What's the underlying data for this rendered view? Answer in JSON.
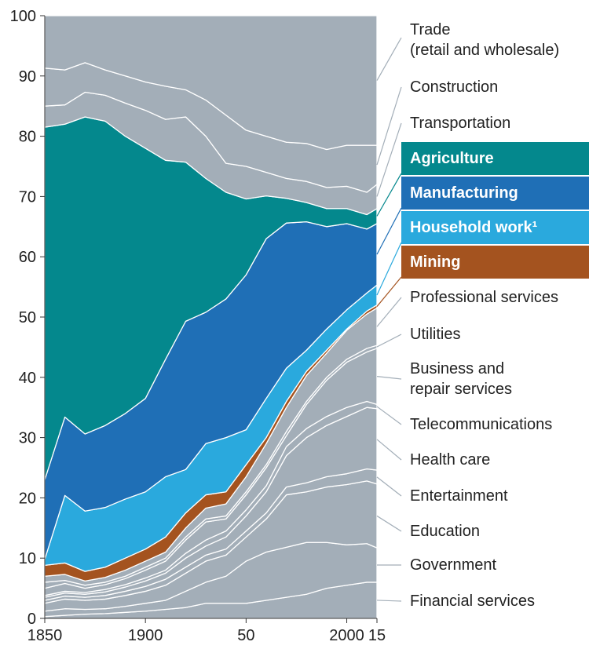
{
  "chart_data": {
    "type": "stacked-area",
    "x": [
      1850,
      1860,
      1870,
      1880,
      1890,
      1900,
      1910,
      1920,
      1930,
      1940,
      1950,
      1960,
      1970,
      1980,
      1990,
      2000,
      2010,
      2015
    ],
    "xlim": [
      1850,
      2015
    ],
    "xticks": [
      1850,
      1900,
      {
        "value": 1950,
        "label": "50"
      },
      2000,
      {
        "value": 2015,
        "label": "15"
      }
    ],
    "ylim": [
      0,
      100
    ],
    "yticks": [
      0,
      10,
      20,
      30,
      40,
      50,
      60,
      70,
      80,
      90,
      100
    ],
    "series": [
      {
        "name": "Financial services",
        "color": "#a3aeb8",
        "values": [
          0.3,
          0.5,
          0.7,
          0.8,
          1,
          1.2,
          1.5,
          1.8,
          2.5,
          2.5,
          2.5,
          3,
          3.5,
          4,
          5,
          5.5,
          6,
          6
        ]
      },
      {
        "name": "Government",
        "color": "#a3aeb8",
        "values": [
          0.9,
          1.1,
          0.8,
          0.8,
          1,
          1.3,
          1.5,
          2.7,
          3.5,
          4.5,
          7,
          8,
          8.3,
          8.6,
          7.6,
          6.7,
          6.4,
          5.7
        ]
      },
      {
        "name": "Education",
        "color": "#a3aeb8",
        "values": [
          1.3,
          1.6,
          1.5,
          1.6,
          1.8,
          2,
          2.5,
          3,
          3.5,
          3.5,
          4,
          5.5,
          8.7,
          8.4,
          9.2,
          10,
          10.4,
          10.6
        ]
      },
      {
        "name": "Entertainment",
        "color": "#a3aeb8",
        "values": [
          0.5,
          0.5,
          0.5,
          0.6,
          0.7,
          0.8,
          1,
          1,
          1,
          1,
          1,
          1,
          1.3,
          1.5,
          1.7,
          1.8,
          2,
          2.3
        ]
      },
      {
        "name": "Health care",
        "color": "#a3aeb8",
        "values": [
          0.5,
          0.5,
          0.5,
          0.6,
          0.7,
          0.9,
          1,
          1.5,
          1.5,
          2,
          2.5,
          3.5,
          5.2,
          7.5,
          8.5,
          9.5,
          10.2,
          10.2
        ]
      },
      {
        "name": "Telecommunications",
        "color": "#a3aeb8",
        "values": [
          0.3,
          0.3,
          0.3,
          0.4,
          0.4,
          0.5,
          0.5,
          0.8,
          1,
          1,
          1,
          1,
          1.5,
          1.5,
          1.5,
          1.5,
          1,
          0.7
        ]
      },
      {
        "name": "Business and\nrepair services",
        "color": "#a3aeb8",
        "values": [
          1.2,
          1.3,
          0.7,
          0.8,
          1,
          1.3,
          1.5,
          2.2,
          3,
          2,
          2.5,
          3,
          1.8,
          4,
          6,
          7.5,
          8.2,
          9.3
        ]
      },
      {
        "name": "Utilities",
        "color": "#a3aeb8",
        "values": [
          1,
          0.5,
          0.5,
          0.4,
          0.4,
          0.5,
          0.5,
          0.5,
          0.5,
          0.5,
          0.5,
          0.5,
          0.7,
          0.5,
          0.5,
          0.5,
          0.6,
          0.5
        ]
      },
      {
        "name": "Professional services",
        "color": "#a3aeb8",
        "values": [
          1,
          1,
          0.7,
          0.8,
          1,
          1,
          1,
          1.5,
          1.8,
          2,
          2.5,
          3.5,
          4,
          4.3,
          4,
          4.8,
          5.7,
          6.2
        ]
      },
      {
        "name": "Mining",
        "color": "#a4531f",
        "highlight": true,
        "values": [
          1.8,
          1.9,
          1.6,
          1.7,
          2,
          2,
          2.5,
          2.5,
          2.2,
          2,
          2,
          1,
          1,
          0.7,
          0.5,
          0.2,
          0.5,
          0.5
        ]
      },
      {
        "name": "Household work¹",
        "color": "#2aa9dd",
        "highlight": true,
        "values": [
          1,
          11.2,
          10,
          9.9,
          9.8,
          9.5,
          10,
          7.2,
          8.5,
          9,
          5.8,
          6.5,
          5.5,
          3.5,
          3.5,
          3.2,
          3,
          3.3
        ]
      },
      {
        "name": "Manufacturing",
        "color": "#1f6fb6",
        "highlight": true,
        "values": [
          13.2,
          13,
          12.8,
          13.6,
          14.2,
          15.5,
          19.5,
          24.6,
          21.8,
          23,
          25.7,
          26.5,
          24.1,
          21.3,
          17,
          14.3,
          10.6,
          10.2
        ]
      },
      {
        "name": "Agriculture",
        "color": "#04888d",
        "highlight": true,
        "values": [
          58.5,
          48.6,
          52.6,
          50.5,
          46,
          41.5,
          33,
          26.4,
          22.2,
          17.7,
          12.6,
          7.1,
          4.1,
          3.2,
          3,
          2.5,
          2.4,
          2.5
        ]
      },
      {
        "name": "Transportation",
        "color": "#a3aeb8",
        "values": [
          3.5,
          3.2,
          4.1,
          4.3,
          5.5,
          6.3,
          6.8,
          7.5,
          7,
          4.8,
          5.4,
          3.9,
          3.3,
          3.5,
          3.5,
          3.7,
          3.7,
          4
        ]
      },
      {
        "name": "Construction",
        "color": "#a3aeb8",
        "values": [
          6.3,
          5.8,
          4.9,
          4.2,
          4.5,
          4.7,
          5.5,
          4.5,
          6,
          8,
          6,
          6,
          6,
          6.3,
          6.3,
          6.8,
          7.8,
          6.5
        ]
      },
      {
        "name": "Trade\n(retail and wholesale)",
        "color": "#a3aeb8",
        "values": [
          8.7,
          9,
          7.8,
          9,
          10,
          11,
          11.7,
          12.3,
          14,
          16.5,
          19,
          20,
          21,
          21.2,
          22.2,
          21.5,
          21.5,
          21.5
        ]
      }
    ]
  }
}
